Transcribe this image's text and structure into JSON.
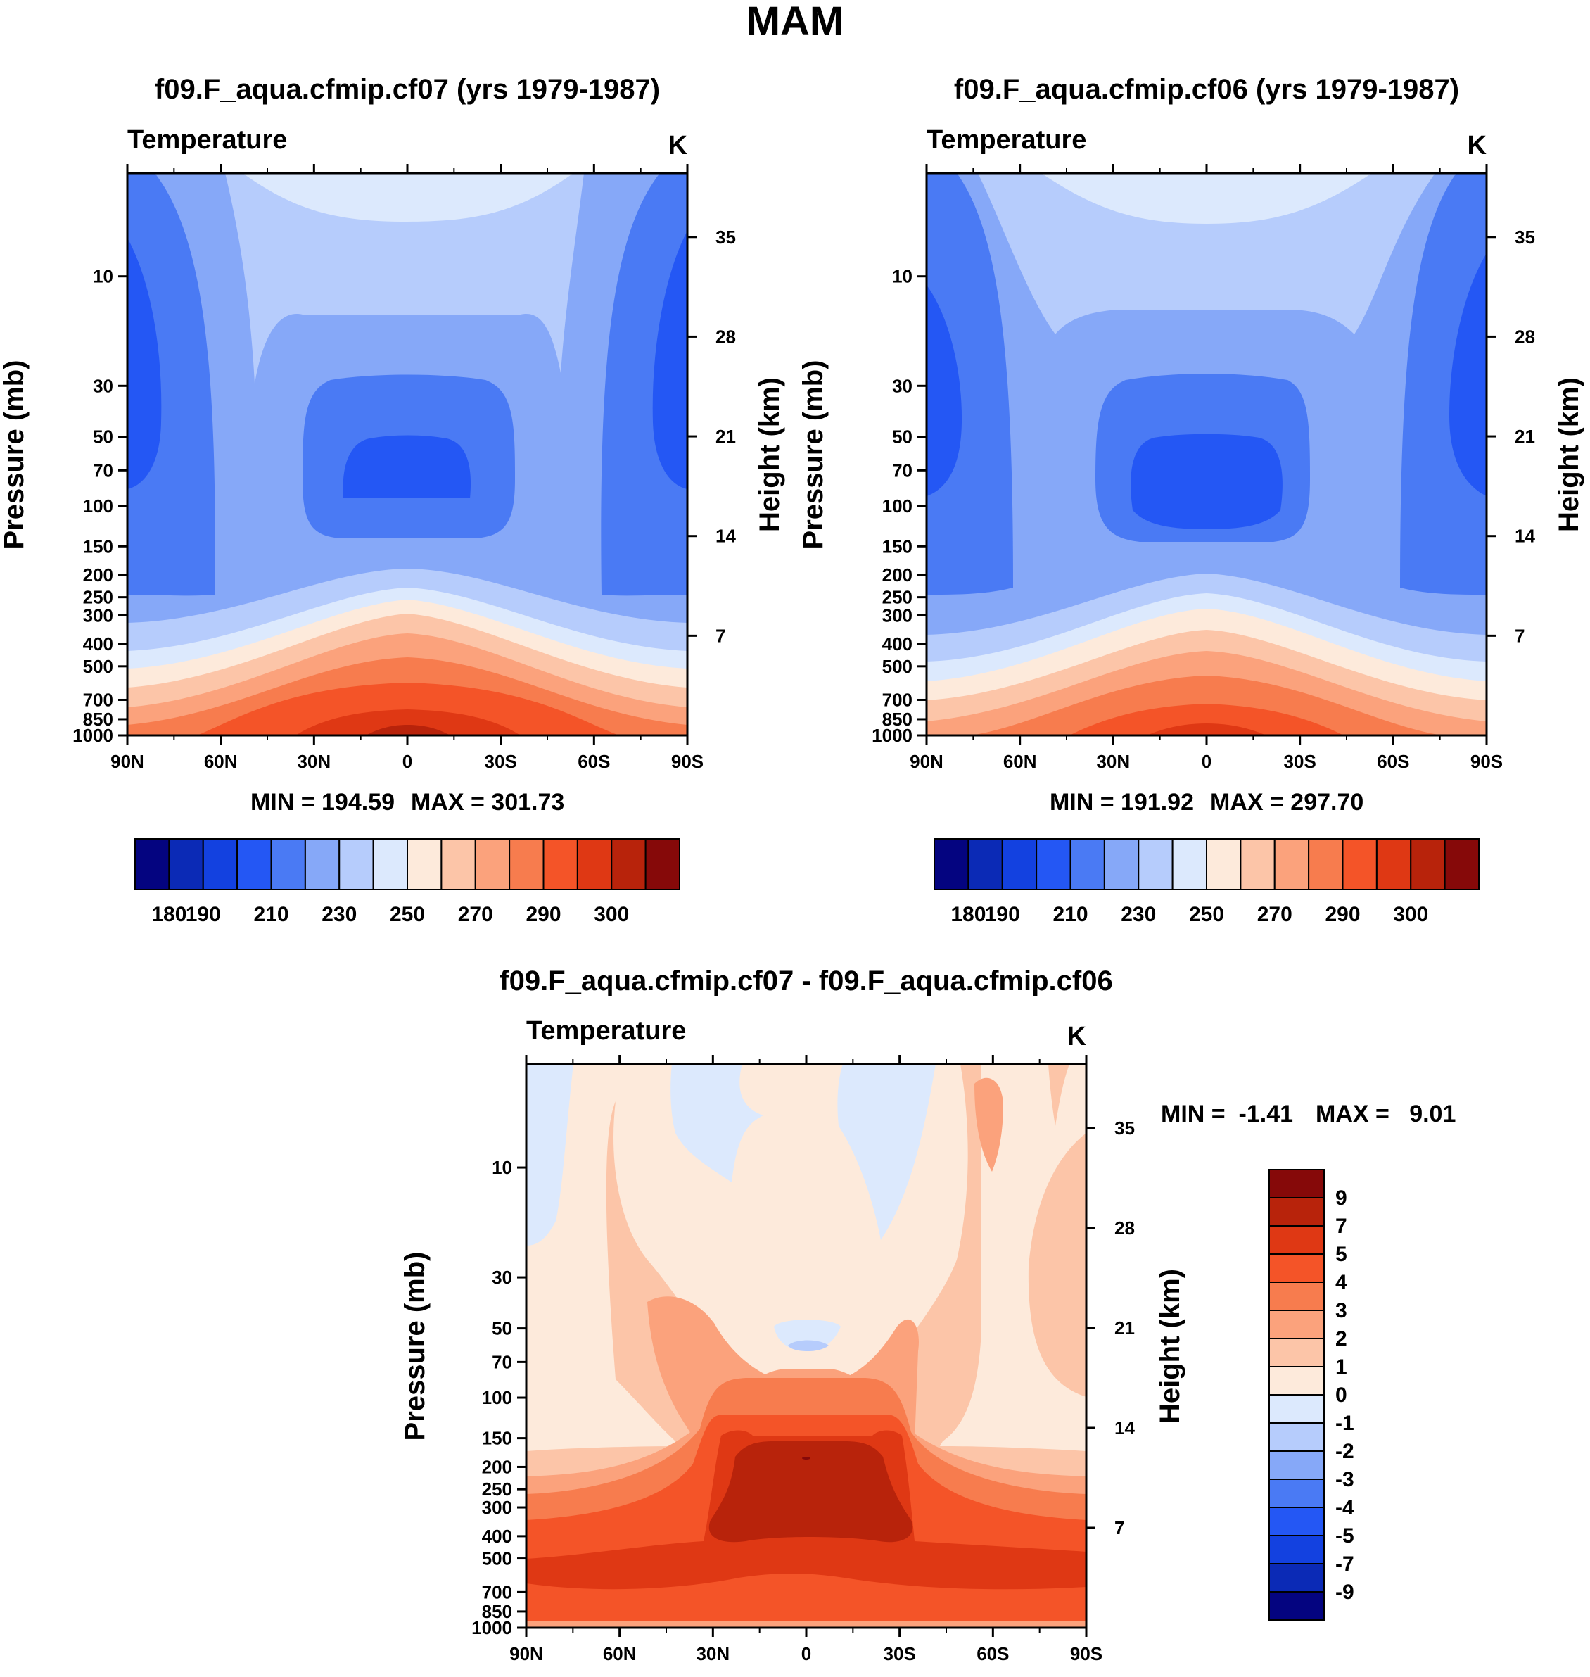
{
  "figure_title": "MAM",
  "chart_data": [
    {
      "type": "heatmap",
      "title": "f09.F_aqua.cfmip.cf07 (yrs 1979-1987)",
      "variable": "Temperature",
      "units": "K",
      "ylabel": "Pressure (mb)",
      "ylabel_right": "Height (km)",
      "x_ticks": [
        "90N",
        "60N",
        "30N",
        "0",
        "30S",
        "60S",
        "90S"
      ],
      "x_values": [
        90,
        60,
        30,
        0,
        -30,
        -60,
        -90
      ],
      "y_ticks": [
        10,
        30,
        50,
        70,
        100,
        150,
        200,
        250,
        300,
        400,
        500,
        700,
        850,
        1000
      ],
      "y_range": [
        3.55,
        1000
      ],
      "height_ticks": [
        35,
        28,
        21,
        14,
        7
      ],
      "min_label": "MIN = 194.59",
      "max_label": "MAX = 301.73",
      "colorbar_labels": [
        "180",
        "190",
        "210",
        "230",
        "250",
        "270",
        "290",
        "300"
      ],
      "colorbar_colors": [
        "#040480",
        "#0b2ab6",
        "#1341e0",
        "#2457f4",
        "#4a7af4",
        "#86a8f8",
        "#b6ccfc",
        "#dce9fd",
        "#fdeadb",
        "#fcc5a8",
        "#fba27c",
        "#f77c4e",
        "#f45428",
        "#df3814",
        "#b8230b",
        "#860909"
      ]
    },
    {
      "type": "heatmap",
      "title": "f09.F_aqua.cfmip.cf06 (yrs 1979-1987)",
      "variable": "Temperature",
      "units": "K",
      "ylabel": "Pressure (mb)",
      "ylabel_right": "Height (km)",
      "x_ticks": [
        "90N",
        "60N",
        "30N",
        "0",
        "30S",
        "60S",
        "90S"
      ],
      "x_values": [
        90,
        60,
        30,
        0,
        -30,
        -60,
        -90
      ],
      "y_ticks": [
        10,
        30,
        50,
        70,
        100,
        150,
        200,
        250,
        300,
        400,
        500,
        700,
        850,
        1000
      ],
      "y_range": [
        3.55,
        1000
      ],
      "height_ticks": [
        35,
        28,
        21,
        14,
        7
      ],
      "min_label": "MIN = 191.92",
      "max_label": "MAX = 297.70",
      "colorbar_labels": [
        "180",
        "190",
        "210",
        "230",
        "250",
        "270",
        "290",
        "300"
      ],
      "colorbar_colors": [
        "#040480",
        "#0b2ab6",
        "#1341e0",
        "#2457f4",
        "#4a7af4",
        "#86a8f8",
        "#b6ccfc",
        "#dce9fd",
        "#fdeadb",
        "#fcc5a8",
        "#fba27c",
        "#f77c4e",
        "#f45428",
        "#df3814",
        "#b8230b",
        "#860909"
      ]
    },
    {
      "type": "heatmap",
      "title": "f09.F_aqua.cfmip.cf07 - f09.F_aqua.cfmip.cf06",
      "variable": "Temperature",
      "units": "K",
      "ylabel": "Pressure (mb)",
      "ylabel_right": "Height (km)",
      "x_ticks": [
        "90N",
        "60N",
        "30N",
        "0",
        "30S",
        "60S",
        "90S"
      ],
      "x_values": [
        90,
        60,
        30,
        0,
        -30,
        -60,
        -90
      ],
      "y_ticks": [
        10,
        30,
        50,
        70,
        100,
        150,
        200,
        250,
        300,
        400,
        500,
        700,
        850,
        1000
      ],
      "y_range": [
        3.55,
        1000
      ],
      "height_ticks": [
        35,
        28,
        21,
        14,
        7
      ],
      "min_label": "MIN =  -1.41",
      "max_label": "MAX =   9.01",
      "colorbar_labels": [
        "9",
        "7",
        "5",
        "4",
        "3",
        "2",
        "1",
        "0",
        "-1",
        "-2",
        "-3",
        "-4",
        "-5",
        "-7",
        "-9"
      ],
      "colorbar_colors": [
        "#860909",
        "#b8230b",
        "#df3814",
        "#f45428",
        "#f77c4e",
        "#fba27c",
        "#fcc5a8",
        "#fdeadb",
        "#dce9fd",
        "#b6ccfc",
        "#86a8f8",
        "#4a7af4",
        "#2457f4",
        "#1341e0",
        "#0b2ab6",
        "#040480"
      ]
    }
  ]
}
